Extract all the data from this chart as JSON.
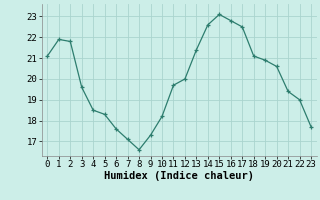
{
  "x": [
    0,
    1,
    2,
    3,
    4,
    5,
    6,
    7,
    8,
    9,
    10,
    11,
    12,
    13,
    14,
    15,
    16,
    17,
    18,
    19,
    20,
    21,
    22,
    23
  ],
  "y": [
    21.1,
    21.9,
    21.8,
    19.6,
    18.5,
    18.3,
    17.6,
    17.1,
    16.6,
    17.3,
    18.2,
    19.7,
    20.0,
    21.4,
    22.6,
    23.1,
    22.8,
    22.5,
    21.1,
    20.9,
    20.6,
    19.4,
    19.0,
    17.7
  ],
  "xlabel": "Humidex (Indice chaleur)",
  "ylim": [
    16.3,
    23.6
  ],
  "yticks": [
    17,
    18,
    19,
    20,
    21,
    22,
    23
  ],
  "xticks": [
    0,
    1,
    2,
    3,
    4,
    5,
    6,
    7,
    8,
    9,
    10,
    11,
    12,
    13,
    14,
    15,
    16,
    17,
    18,
    19,
    20,
    21,
    22,
    23
  ],
  "line_color": "#2d7d6e",
  "marker": "+",
  "bg_color": "#cceee8",
  "grid_color": "#aad4ce",
  "tick_label_fontsize": 6.5,
  "xlabel_fontsize": 7.5
}
